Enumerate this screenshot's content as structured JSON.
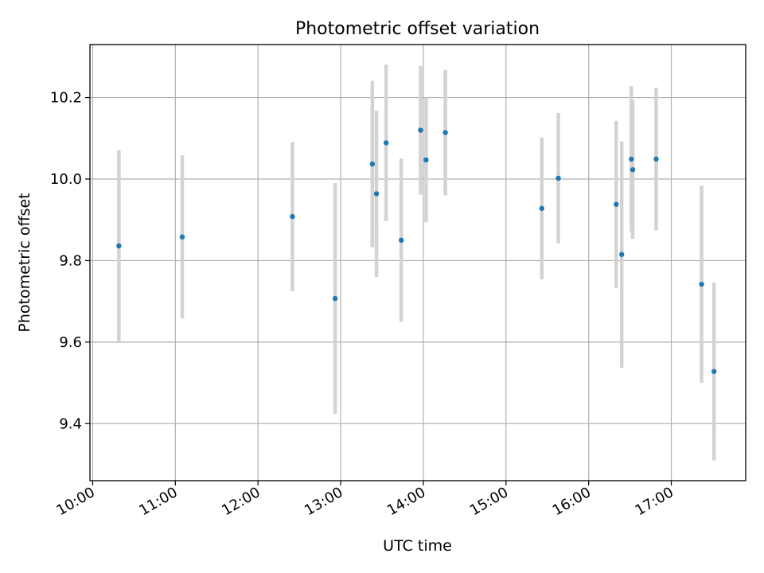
{
  "chart_data": {
    "type": "scatter",
    "title": "Photometric offset variation",
    "xlabel": "UTC time",
    "ylabel": "Photometric offset",
    "x_unit": "UTC time (HH:MM)",
    "xlim": [
      "09:58",
      "17:54"
    ],
    "ylim": [
      9.26,
      10.33
    ],
    "x_ticks": [
      "10:00",
      "11:00",
      "12:00",
      "13:00",
      "14:00",
      "15:00",
      "16:00",
      "17:00"
    ],
    "y_ticks": [
      9.4,
      9.6,
      9.8,
      10.0,
      10.2
    ],
    "y_tick_labels": [
      "9.4",
      "9.6",
      "9.8",
      "10.0",
      "10.2"
    ],
    "grid": true,
    "marker_color": "#1f77b4",
    "errorbar_color": "#d3d3d3",
    "series": [
      {
        "points": [
          {
            "x": "10:19",
            "y": 9.836,
            "err": 0.235
          },
          {
            "x": "11:05",
            "y": 9.858,
            "err": 0.2
          },
          {
            "x": "12:25",
            "y": 9.908,
            "err": 0.183
          },
          {
            "x": "12:56",
            "y": 9.707,
            "err": 0.283
          },
          {
            "x": "13:23",
            "y": 10.037,
            "err": 0.204
          },
          {
            "x": "13:26",
            "y": 9.964,
            "err": 0.204
          },
          {
            "x": "13:33",
            "y": 10.089,
            "err": 0.192
          },
          {
            "x": "13:44",
            "y": 9.85,
            "err": 0.2
          },
          {
            "x": "13:58",
            "y": 10.12,
            "err": 0.158
          },
          {
            "x": "14:02",
            "y": 10.047,
            "err": 0.153
          },
          {
            "x": "14:16",
            "y": 10.114,
            "err": 0.154
          },
          {
            "x": "15:26",
            "y": 9.928,
            "err": 0.174
          },
          {
            "x": "15:38",
            "y": 10.002,
            "err": 0.16
          },
          {
            "x": "16:20",
            "y": 9.938,
            "err": 0.205
          },
          {
            "x": "16:24",
            "y": 9.815,
            "err": 0.278
          },
          {
            "x": "16:31",
            "y": 10.049,
            "err": 0.179
          },
          {
            "x": "16:32",
            "y": 10.023,
            "err": 0.17
          },
          {
            "x": "16:49",
            "y": 10.049,
            "err": 0.175
          },
          {
            "x": "17:22",
            "y": 9.742,
            "err": 0.242
          },
          {
            "x": "17:31",
            "y": 9.528,
            "err": 0.218
          }
        ]
      }
    ]
  }
}
